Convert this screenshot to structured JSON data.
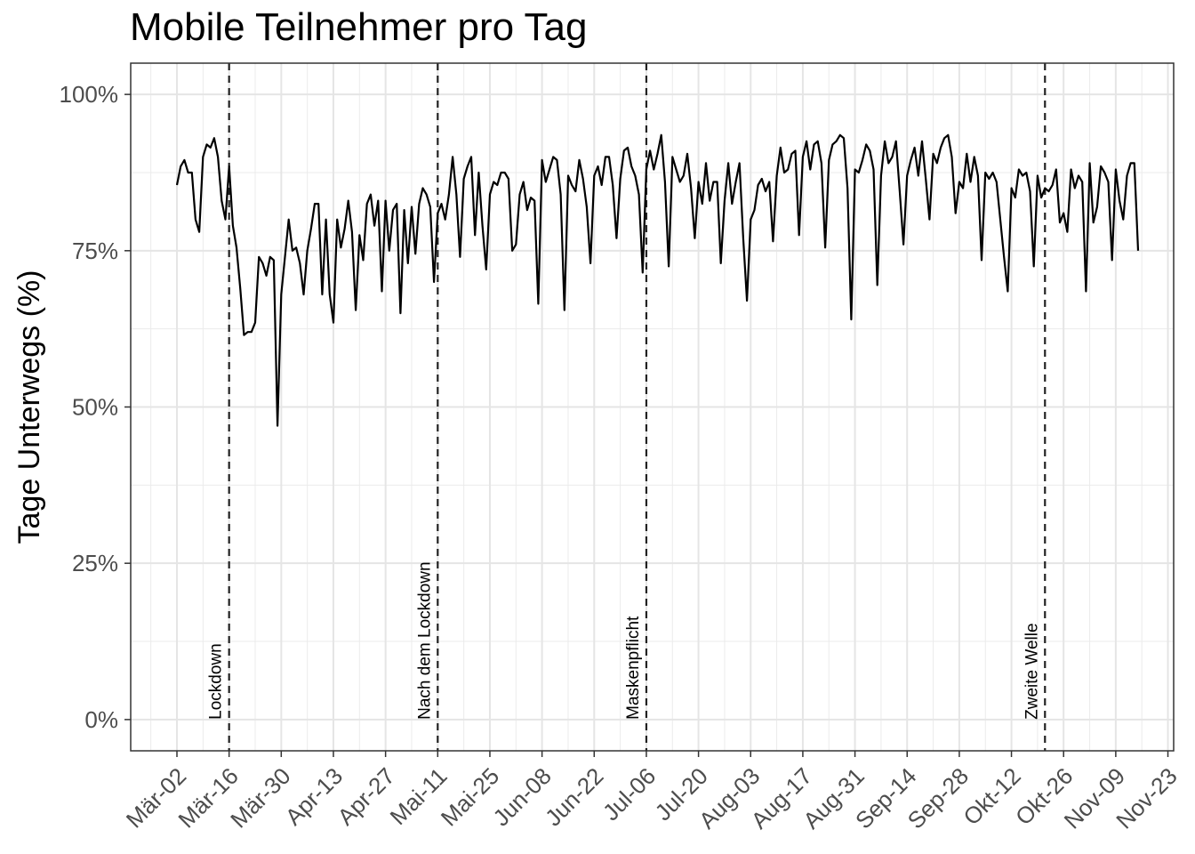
{
  "chart_data": {
    "type": "line",
    "title": "Mobile Teilnehmer pro Tag",
    "xlabel": "",
    "ylabel": "Tage Unterwegs (%)",
    "ylim": [
      -5,
      105
    ],
    "grid": true,
    "x_start": "2020-03-02",
    "x_ticks": [
      "Mär-02",
      "Mär-16",
      "Mär-30",
      "Apr-13",
      "Apr-27",
      "Mai-11",
      "Mai-25",
      "Jun-08",
      "Jun-22",
      "Jul-06",
      "Jul-20",
      "Aug-03",
      "Aug-17",
      "Aug-31",
      "Sep-14",
      "Sep-28",
      "Okt-12",
      "Okt-26",
      "Nov-09",
      "Nov-23"
    ],
    "y_ticks": [
      "0%",
      "25%",
      "50%",
      "75%",
      "100%"
    ],
    "events": [
      {
        "label": "Lockdown",
        "date": "Mär-16"
      },
      {
        "label": "Nach dem Lockdown",
        "date": "Mai-11"
      },
      {
        "label": "Maskenpflicht",
        "date": "Jul-06"
      },
      {
        "label": "Zweite Welle",
        "date": "Okt-21"
      }
    ],
    "series": [
      {
        "values": [
          85.5,
          88.5,
          89.5,
          87.5,
          87.5,
          80,
          78,
          90,
          92,
          91.5,
          93,
          90,
          83,
          80,
          88.5,
          79,
          75.5,
          69,
          61.5,
          62,
          62,
          63.5,
          74,
          73,
          71,
          74,
          73.5,
          47,
          68,
          74,
          80,
          75,
          75.5,
          73,
          68,
          75,
          78.5,
          82.5,
          82.5,
          68,
          80,
          68,
          63.5,
          80,
          75.5,
          78.5,
          83,
          78,
          65.5,
          77.5,
          73.5,
          82.5,
          84,
          79,
          83,
          68.5,
          83,
          75,
          81.5,
          82.5,
          65,
          81.5,
          73,
          82,
          74.5,
          82.5,
          85,
          84,
          82,
          70,
          81,
          82.5,
          80,
          84,
          90,
          84,
          74,
          86.5,
          88.5,
          90,
          77.5,
          87.5,
          79,
          72,
          84,
          86,
          85.5,
          87.5,
          87.5,
          86.5,
          75,
          76,
          84,
          86,
          81.5,
          83.5,
          83,
          66.5,
          89.5,
          86,
          88,
          90,
          89.5,
          84,
          65.5,
          87,
          85.5,
          84.5,
          89.5,
          86.5,
          82,
          73,
          87,
          88.5,
          85.5,
          90,
          90,
          85.5,
          77,
          86.5,
          91,
          91.5,
          88.5,
          87,
          84,
          71.5,
          88,
          91,
          88,
          90.5,
          93.5,
          86,
          72.5,
          90,
          88,
          86,
          87,
          90.5,
          85,
          77,
          86,
          82.5,
          89,
          83,
          86,
          86,
          73,
          83,
          89,
          82.5,
          86,
          89,
          77,
          67,
          80,
          81.5,
          85.5,
          86.5,
          84.5,
          86,
          76.5,
          87,
          91.5,
          87.5,
          88,
          90.5,
          91,
          77.5,
          90,
          92.5,
          88,
          92,
          92.5,
          89,
          75.5,
          89.5,
          92,
          92.5,
          93.5,
          93,
          85,
          64,
          88,
          87.5,
          89.5,
          92,
          91,
          88,
          69.5,
          87,
          92.5,
          89,
          90,
          92.5,
          84.5,
          76,
          87,
          89.5,
          91.5,
          87,
          92.5,
          86.5,
          80,
          90.5,
          89,
          91.5,
          93,
          93.5,
          90,
          81,
          86,
          85,
          90.5,
          86,
          90,
          87,
          73.5,
          87.5,
          86.5,
          87.5,
          86,
          80,
          74,
          68.5,
          85,
          83.5,
          88,
          87,
          87.5,
          84.5,
          72.5,
          87,
          83.5,
          85,
          84.5,
          85.5,
          88,
          79.5,
          81,
          78,
          88,
          85,
          87,
          86,
          68.5,
          89,
          79.5,
          82,
          88.5,
          87.5,
          86,
          73.5,
          88,
          83,
          80,
          87,
          89,
          89,
          75
        ]
      }
    ]
  }
}
